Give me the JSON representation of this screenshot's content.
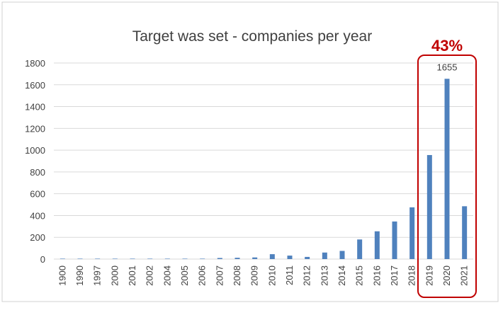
{
  "chart_data": {
    "type": "bar",
    "title": "Target was set - companies per year",
    "xlabel": "",
    "ylabel": "",
    "categories": [
      "1900",
      "1990",
      "1997",
      "2000",
      "2001",
      "2002",
      "2004",
      "2005",
      "2006",
      "2007",
      "2008",
      "2009",
      "2010",
      "2011",
      "2012",
      "2013",
      "2014",
      "2015",
      "2016",
      "2017",
      "2018",
      "2019",
      "2020",
      "2021"
    ],
    "values": [
      1,
      1,
      1,
      1,
      1,
      1,
      1,
      1,
      2,
      10,
      12,
      15,
      45,
      32,
      20,
      60,
      75,
      180,
      255,
      345,
      475,
      955,
      1655,
      485
    ],
    "ylim": [
      0,
      1800
    ],
    "yticks": [
      0,
      200,
      400,
      600,
      800,
      1000,
      1200,
      1400,
      1600,
      1800
    ],
    "grid": true,
    "legend": "none",
    "bar_color": "#4f81bd",
    "data_labels": [
      {
        "category": "2020",
        "text": "1655"
      }
    ],
    "highlight": {
      "label": "43%",
      "categories": [
        "2019",
        "2020",
        "2021"
      ],
      "color": "#c00000"
    }
  }
}
